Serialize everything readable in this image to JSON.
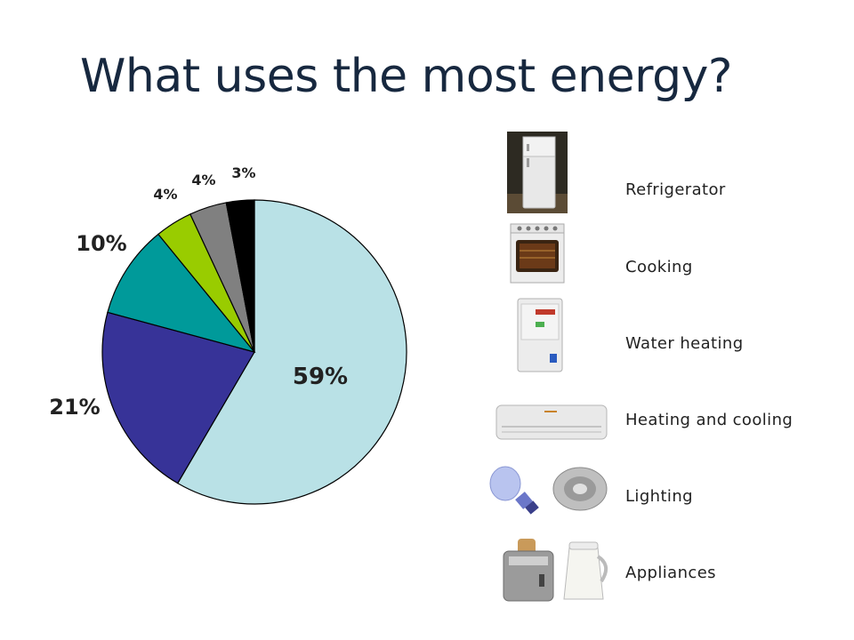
{
  "slide": {
    "title": "What uses the most energy?"
  },
  "chart_data": {
    "type": "pie",
    "title": "What uses the most energy?",
    "start": "top, clockwise",
    "categories": [
      "Refrigerator",
      "Cooking",
      "Water heating",
      "Heating and cooling",
      "Lighting",
      "Appliances"
    ],
    "slices": [
      {
        "label": "59%",
        "value": 59,
        "color": "#b9e1e6"
      },
      {
        "label": "21%",
        "value": 21,
        "color": "#373398"
      },
      {
        "label": "10%",
        "value": 10,
        "color": "#009a9a"
      },
      {
        "label": "4%",
        "value": 4,
        "color": "#99cc00"
      },
      {
        "label": "4%",
        "value": 4,
        "color": "#808080"
      },
      {
        "label": "3%",
        "value": 3,
        "color": "#000000"
      }
    ]
  },
  "legend": [
    {
      "label": "Refrigerator",
      "icon": "refrigerator-icon"
    },
    {
      "label": "Cooking",
      "icon": "oven-icon"
    },
    {
      "label": "Water heating",
      "icon": "water-heater-icon"
    },
    {
      "label": "Heating and cooling",
      "icon": "air-conditioner-icon"
    },
    {
      "label": "Lighting",
      "icon": "light-bulb-icon"
    },
    {
      "label": "Appliances",
      "icon": "toaster-kettle-icon"
    }
  ]
}
